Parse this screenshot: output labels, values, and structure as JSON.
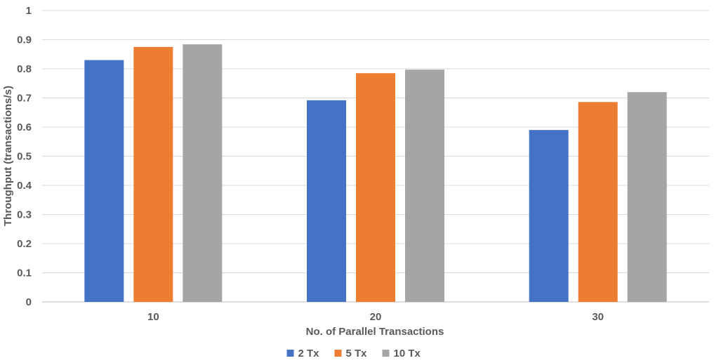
{
  "chart_data": {
    "type": "bar",
    "categories": [
      "10",
      "20",
      "30"
    ],
    "series": [
      {
        "name": "2 Tx",
        "color": "#4472C4",
        "values": [
          0.83,
          0.692,
          0.59
        ]
      },
      {
        "name": "5 Tx",
        "color": "#ED7D31",
        "values": [
          0.875,
          0.785,
          0.686
        ]
      },
      {
        "name": "10 Tx",
        "color": "#A5A5A5",
        "values": [
          0.884,
          0.797,
          0.72
        ]
      }
    ],
    "xlabel": "No. of Parallel Transactions",
    "ylabel": "Throughput (transactions/s)",
    "ylim": [
      0,
      1
    ],
    "yticks": [
      "0",
      "0.1",
      "0.2",
      "0.3",
      "0.4",
      "0.5",
      "0.6",
      "0.7",
      "0.8",
      "0.9",
      "1"
    ],
    "grid": true,
    "legend_position": "bottom"
  }
}
